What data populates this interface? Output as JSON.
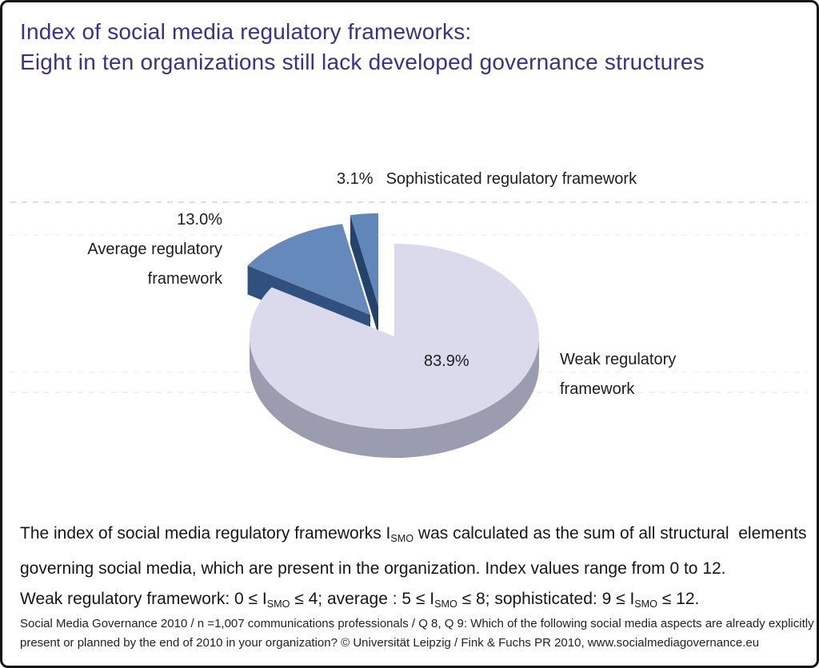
{
  "title": {
    "line1": "Index of social media regulatory frameworks:",
    "line2": "Eight in ten organizations still lack developed governance structures"
  },
  "chart_data": {
    "type": "pie",
    "style": "3d-exploded",
    "unit": "%",
    "start_angle_deg": 90,
    "direction": "counterclockwise",
    "total": 100,
    "legend_position": "callout-labels",
    "slices": [
      {
        "label": "Sophisticated regulatory framework",
        "value": 3.1,
        "top_color": "#6187ba",
        "side_color": "#24436b",
        "exploded": true
      },
      {
        "label": "Average regulatory framework",
        "value": 13.0,
        "top_color": "#6589bb",
        "side_color": "#30517e",
        "exploded": true
      },
      {
        "label": "Weak regulatory framework",
        "value": 83.9,
        "top_color": "#dbdaec",
        "side_color": "#a3a2b8",
        "exploded": false
      }
    ]
  },
  "body": {
    "line1": "The index of social media regulatory frameworks I_{SMO} was calculated as the sum of all structural  elements",
    "line2": "governing social media, which are present in the organization. Index values range from 0 to 12.",
    "line3": "Weak regulatory framework: 0 ≤ I_{SMO} ≤ 4; average : 5 ≤ I_{SMO} ≤ 8; sophisticated: 9 ≤ I_{SMO} ≤ 12."
  },
  "footer": {
    "line1": "Social Media Governance 2010 /  n =1,007 communications professionals / Q 8, Q 9: Which of the following social media aspects are already explicitly",
    "line2": "present or planned by the end of 2010 in your organization? © Universität Leipzig / Fink & Fuchs PR 2010, www.socialmediagovernance.eu"
  }
}
